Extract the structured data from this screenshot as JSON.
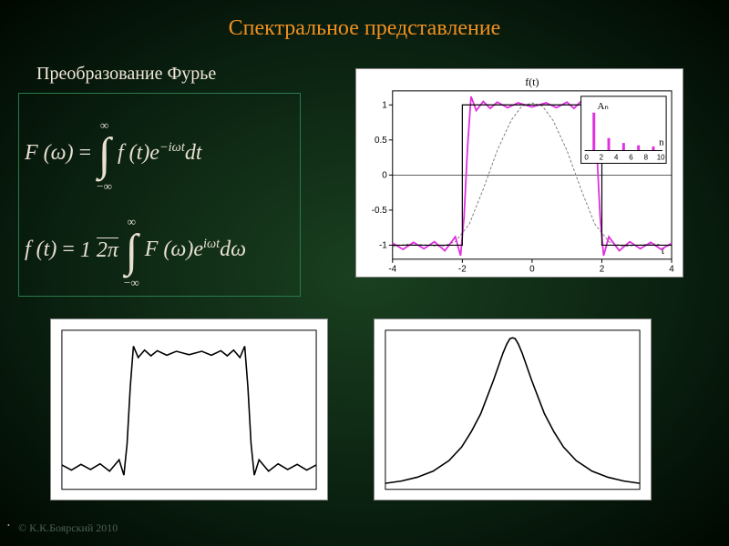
{
  "title": {
    "text": "Спектральное представление",
    "color": "#f09020",
    "fontsize": 24
  },
  "subtitle": {
    "text": "Преобразование Фурье",
    "color": "#f0e8d8",
    "fontsize": 20
  },
  "footer": {
    "text": "© К.К.Боярский 2010",
    "color": "#4a6050",
    "fontsize": 12
  },
  "formulas": {
    "color": "#e8e0d0",
    "fontsize": 24,
    "eq1": {
      "lhs": "F (ω)",
      "integrand": "f (t)e",
      "exp": "−iωt",
      "d": "dt"
    },
    "eq2": {
      "lhs": "f (t)",
      "frac_num": "1",
      "frac_den": "2π",
      "integrand": "F (ω)e",
      "exp": "iωt",
      "d": "dω"
    },
    "limits_low": "−∞",
    "limits_high": "∞"
  },
  "chart_topright": {
    "type": "line",
    "background_color": "#ffffff",
    "title": "f(t)",
    "xaxis_label": "t",
    "xlim": [
      -4,
      4
    ],
    "xtick_step": 2,
    "xticks": [
      -4,
      -2,
      0,
      2,
      4
    ],
    "ylim": [
      -1.2,
      1.2
    ],
    "yticks": [
      -1,
      -0.5,
      0,
      0.5,
      1
    ],
    "frame_color": "#000000",
    "axis_color": "#000000",
    "series": [
      {
        "name": "approx-coarse",
        "color": "#808080",
        "dash": "3,2",
        "width": 1,
        "pts": [
          [
            -4,
            -1.02
          ],
          [
            -3.5,
            -0.98
          ],
          [
            -3,
            -1.0
          ],
          [
            -2.6,
            -1.02
          ],
          [
            -2.2,
            -0.95
          ],
          [
            -1.8,
            -0.7
          ],
          [
            -1.4,
            -0.2
          ],
          [
            -1.0,
            0.35
          ],
          [
            -0.6,
            0.78
          ],
          [
            -0.3,
            0.98
          ],
          [
            0,
            1.03
          ],
          [
            0.3,
            0.98
          ],
          [
            0.6,
            0.78
          ],
          [
            1.0,
            0.35
          ],
          [
            1.4,
            -0.2
          ],
          [
            1.8,
            -0.7
          ],
          [
            2.2,
            -0.95
          ],
          [
            2.6,
            -1.02
          ],
          [
            3,
            -1.0
          ],
          [
            3.5,
            -0.98
          ],
          [
            4,
            -1.02
          ]
        ]
      },
      {
        "name": "approx-fine",
        "color": "#e030e0",
        "width": 1.8,
        "pts": [
          [
            -4,
            -0.97
          ],
          [
            -3.7,
            -1.06
          ],
          [
            -3.4,
            -0.96
          ],
          [
            -3.1,
            -1.05
          ],
          [
            -2.8,
            -0.95
          ],
          [
            -2.5,
            -1.08
          ],
          [
            -2.2,
            -0.88
          ],
          [
            -2.05,
            -1.15
          ],
          [
            -1.95,
            -0.6
          ],
          [
            -1.85,
            0.4
          ],
          [
            -1.75,
            1.12
          ],
          [
            -1.6,
            0.92
          ],
          [
            -1.4,
            1.05
          ],
          [
            -1.2,
            0.95
          ],
          [
            -1.0,
            1.04
          ],
          [
            -0.7,
            0.96
          ],
          [
            -0.4,
            1.03
          ],
          [
            0,
            0.97
          ],
          [
            0.4,
            1.03
          ],
          [
            0.7,
            0.96
          ],
          [
            1.0,
            1.04
          ],
          [
            1.2,
            0.95
          ],
          [
            1.4,
            1.05
          ],
          [
            1.6,
            0.92
          ],
          [
            1.75,
            1.12
          ],
          [
            1.85,
            0.4
          ],
          [
            1.95,
            -0.6
          ],
          [
            2.05,
            -1.15
          ],
          [
            2.2,
            -0.88
          ],
          [
            2.5,
            -1.08
          ],
          [
            2.8,
            -0.95
          ],
          [
            3.1,
            -1.05
          ],
          [
            3.4,
            -0.96
          ],
          [
            3.7,
            -1.06
          ],
          [
            4,
            -0.97
          ]
        ]
      },
      {
        "name": "square",
        "color": "#000000",
        "width": 1.2,
        "pts": [
          [
            -4,
            -1
          ],
          [
            -2,
            -1
          ],
          [
            -2,
            1
          ],
          [
            2,
            1
          ],
          [
            2,
            -1
          ],
          [
            4,
            -1
          ]
        ]
      }
    ],
    "inset": {
      "title": "Aₙ",
      "xaxis_label": "n",
      "xticks": [
        0,
        2,
        4,
        6,
        8,
        10
      ],
      "bar_color": "#e030e0",
      "frame_color": "#000000",
      "bars": [
        [
          0,
          0
        ],
        [
          1,
          1.0
        ],
        [
          2,
          0
        ],
        [
          3,
          0.33
        ],
        [
          4,
          0
        ],
        [
          5,
          0.2
        ],
        [
          6,
          0
        ],
        [
          7,
          0.14
        ],
        [
          8,
          0
        ],
        [
          9,
          0.11
        ],
        [
          10,
          0
        ]
      ]
    }
  },
  "chart_botleft": {
    "type": "line",
    "background_color": "#ffffff",
    "frame_color": "#000000",
    "xlim": [
      -4,
      4
    ],
    "ylim": [
      -1.4,
      1.4
    ],
    "series": [
      {
        "name": "gibbs",
        "color": "#000000",
        "width": 1.6,
        "pts": [
          [
            -4,
            -0.97
          ],
          [
            -3.7,
            -1.06
          ],
          [
            -3.4,
            -0.96
          ],
          [
            -3.1,
            -1.05
          ],
          [
            -2.8,
            -0.95
          ],
          [
            -2.5,
            -1.08
          ],
          [
            -2.2,
            -0.88
          ],
          [
            -2.05,
            -1.15
          ],
          [
            -1.95,
            -0.6
          ],
          [
            -1.85,
            0.4
          ],
          [
            -1.75,
            1.12
          ],
          [
            -1.6,
            0.92
          ],
          [
            -1.4,
            1.05
          ],
          [
            -1.2,
            0.95
          ],
          [
            -1.0,
            1.04
          ],
          [
            -0.7,
            0.96
          ],
          [
            -0.4,
            1.03
          ],
          [
            0,
            0.97
          ],
          [
            0.4,
            1.03
          ],
          [
            0.7,
            0.96
          ],
          [
            1.0,
            1.04
          ],
          [
            1.2,
            0.95
          ],
          [
            1.4,
            1.05
          ],
          [
            1.6,
            0.92
          ],
          [
            1.75,
            1.12
          ],
          [
            1.85,
            0.4
          ],
          [
            1.95,
            -0.6
          ],
          [
            2.05,
            -1.15
          ],
          [
            2.2,
            -0.88
          ],
          [
            2.5,
            -1.08
          ],
          [
            2.8,
            -0.95
          ],
          [
            3.1,
            -1.05
          ],
          [
            3.4,
            -0.96
          ],
          [
            3.7,
            -1.06
          ],
          [
            4,
            -0.97
          ]
        ]
      }
    ]
  },
  "chart_botright": {
    "type": "line",
    "background_color": "#ffffff",
    "frame_color": "#000000",
    "xlim": [
      -4,
      4
    ],
    "ylim": [
      0,
      1.05
    ],
    "series": [
      {
        "name": "peak",
        "color": "#000000",
        "width": 1.6,
        "pts": [
          [
            -4,
            0.04
          ],
          [
            -3.5,
            0.055
          ],
          [
            -3,
            0.08
          ],
          [
            -2.5,
            0.12
          ],
          [
            -2,
            0.19
          ],
          [
            -1.6,
            0.28
          ],
          [
            -1.3,
            0.38
          ],
          [
            -1.0,
            0.5
          ],
          [
            -0.8,
            0.61
          ],
          [
            -0.6,
            0.72
          ],
          [
            -0.45,
            0.81
          ],
          [
            -0.3,
            0.9
          ],
          [
            -0.18,
            0.96
          ],
          [
            -0.08,
            0.995
          ],
          [
            0,
            1.0
          ],
          [
            0.08,
            0.995
          ],
          [
            0.18,
            0.96
          ],
          [
            0.3,
            0.9
          ],
          [
            0.45,
            0.81
          ],
          [
            0.6,
            0.72
          ],
          [
            0.8,
            0.61
          ],
          [
            1.0,
            0.5
          ],
          [
            1.3,
            0.38
          ],
          [
            1.6,
            0.28
          ],
          [
            2,
            0.19
          ],
          [
            2.5,
            0.12
          ],
          [
            3,
            0.08
          ],
          [
            3.5,
            0.055
          ],
          [
            4,
            0.04
          ]
        ]
      }
    ]
  }
}
